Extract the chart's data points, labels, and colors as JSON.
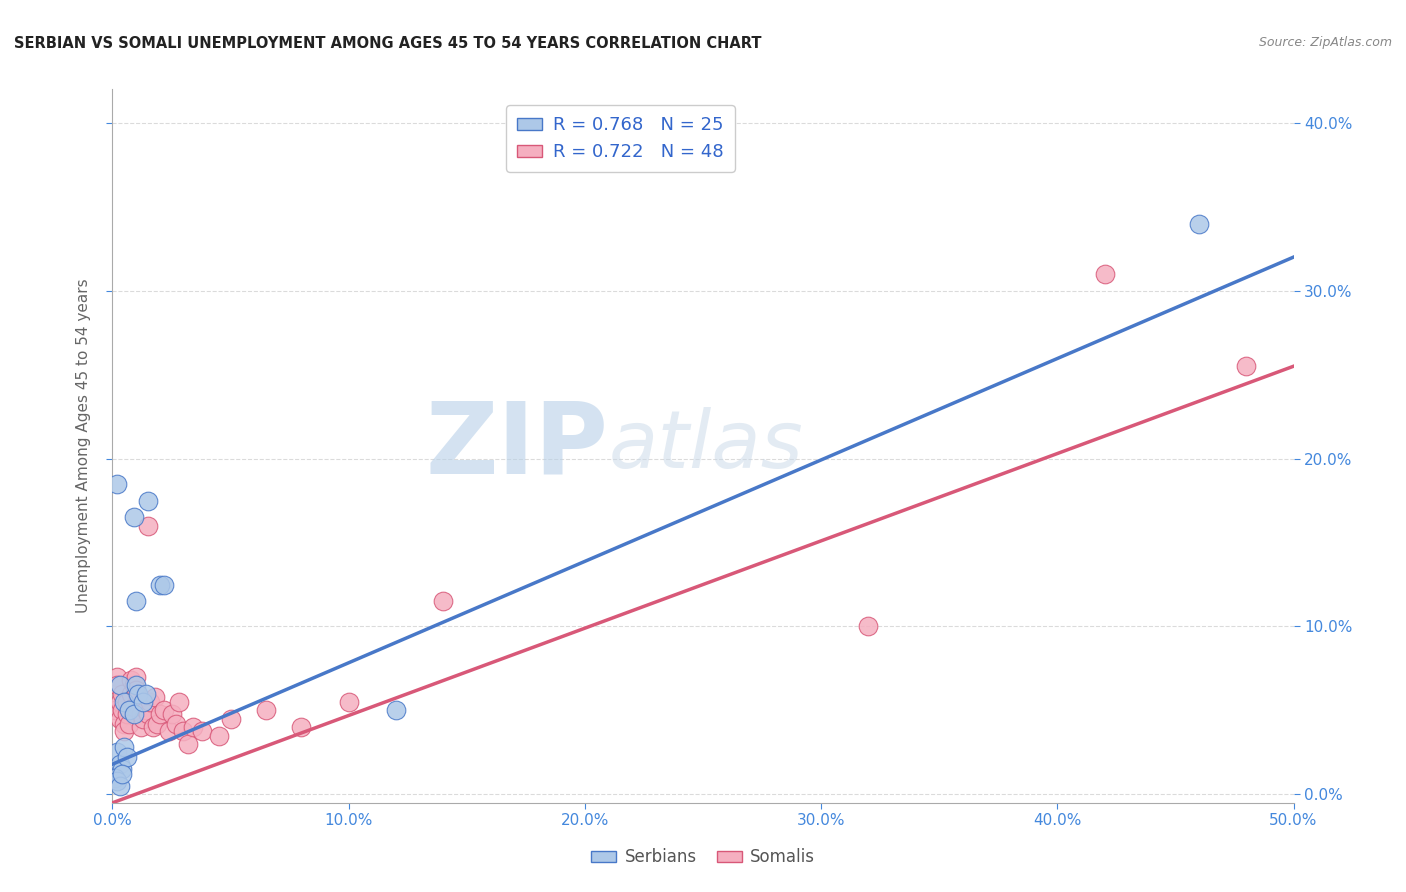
{
  "title": "SERBIAN VS SOMALI UNEMPLOYMENT AMONG AGES 45 TO 54 YEARS CORRELATION CHART",
  "source": "Source: ZipAtlas.com",
  "ylabel": "Unemployment Among Ages 45 to 54 years",
  "xlim": [
    0.0,
    0.5
  ],
  "ylim": [
    -0.005,
    0.42
  ],
  "xticks": [
    0.0,
    0.1,
    0.2,
    0.3,
    0.4,
    0.5
  ],
  "yticks": [
    0.0,
    0.1,
    0.2,
    0.3,
    0.4
  ],
  "grid_color": "#cccccc",
  "watermark_zip": "ZIP",
  "watermark_atlas": "atlas",
  "legend_R_serbian": "R = 0.768",
  "legend_N_serbian": "N = 25",
  "legend_R_somali": "R = 0.722",
  "legend_N_somali": "N = 48",
  "serbian_color": "#adc8e8",
  "somali_color": "#f5afc0",
  "serbian_line_color": "#4878c8",
  "somali_line_color": "#d85878",
  "serbian_line": [
    [
      0.0,
      0.018
    ],
    [
      0.5,
      0.32
    ]
  ],
  "somali_line": [
    [
      0.0,
      -0.005
    ],
    [
      0.5,
      0.255
    ]
  ],
  "serbian_points": [
    [
      0.002,
      0.185
    ],
    [
      0.009,
      0.165
    ],
    [
      0.015,
      0.175
    ],
    [
      0.02,
      0.125
    ],
    [
      0.022,
      0.125
    ],
    [
      0.01,
      0.115
    ],
    [
      0.003,
      0.065
    ],
    [
      0.005,
      0.055
    ],
    [
      0.007,
      0.05
    ],
    [
      0.009,
      0.048
    ],
    [
      0.01,
      0.065
    ],
    [
      0.011,
      0.06
    ],
    [
      0.013,
      0.055
    ],
    [
      0.014,
      0.06
    ],
    [
      0.002,
      0.025
    ],
    [
      0.003,
      0.018
    ],
    [
      0.004,
      0.015
    ],
    [
      0.005,
      0.028
    ],
    [
      0.006,
      0.022
    ],
    [
      0.001,
      0.01
    ],
    [
      0.002,
      0.008
    ],
    [
      0.003,
      0.005
    ],
    [
      0.004,
      0.012
    ],
    [
      0.46,
      0.34
    ],
    [
      0.12,
      0.05
    ]
  ],
  "somali_points": [
    [
      0.001,
      0.05
    ],
    [
      0.002,
      0.07
    ],
    [
      0.002,
      0.065
    ],
    [
      0.003,
      0.055
    ],
    [
      0.003,
      0.045
    ],
    [
      0.004,
      0.06
    ],
    [
      0.004,
      0.05
    ],
    [
      0.005,
      0.042
    ],
    [
      0.005,
      0.038
    ],
    [
      0.006,
      0.055
    ],
    [
      0.006,
      0.048
    ],
    [
      0.007,
      0.042
    ],
    [
      0.008,
      0.068
    ],
    [
      0.008,
      0.06
    ],
    [
      0.009,
      0.052
    ],
    [
      0.009,
      0.065
    ],
    [
      0.01,
      0.07
    ],
    [
      0.01,
      0.062
    ],
    [
      0.011,
      0.058
    ],
    [
      0.012,
      0.048
    ],
    [
      0.012,
      0.04
    ],
    [
      0.013,
      0.045
    ],
    [
      0.014,
      0.05
    ],
    [
      0.015,
      0.16
    ],
    [
      0.015,
      0.048
    ],
    [
      0.016,
      0.055
    ],
    [
      0.017,
      0.04
    ],
    [
      0.018,
      0.058
    ],
    [
      0.019,
      0.042
    ],
    [
      0.02,
      0.048
    ],
    [
      0.022,
      0.05
    ],
    [
      0.024,
      0.038
    ],
    [
      0.025,
      0.048
    ],
    [
      0.027,
      0.042
    ],
    [
      0.028,
      0.055
    ],
    [
      0.03,
      0.038
    ],
    [
      0.032,
      0.03
    ],
    [
      0.034,
      0.04
    ],
    [
      0.038,
      0.038
    ],
    [
      0.045,
      0.035
    ],
    [
      0.05,
      0.045
    ],
    [
      0.065,
      0.05
    ],
    [
      0.08,
      0.04
    ],
    [
      0.1,
      0.055
    ],
    [
      0.14,
      0.115
    ],
    [
      0.32,
      0.1
    ],
    [
      0.42,
      0.31
    ],
    [
      0.48,
      0.255
    ]
  ]
}
